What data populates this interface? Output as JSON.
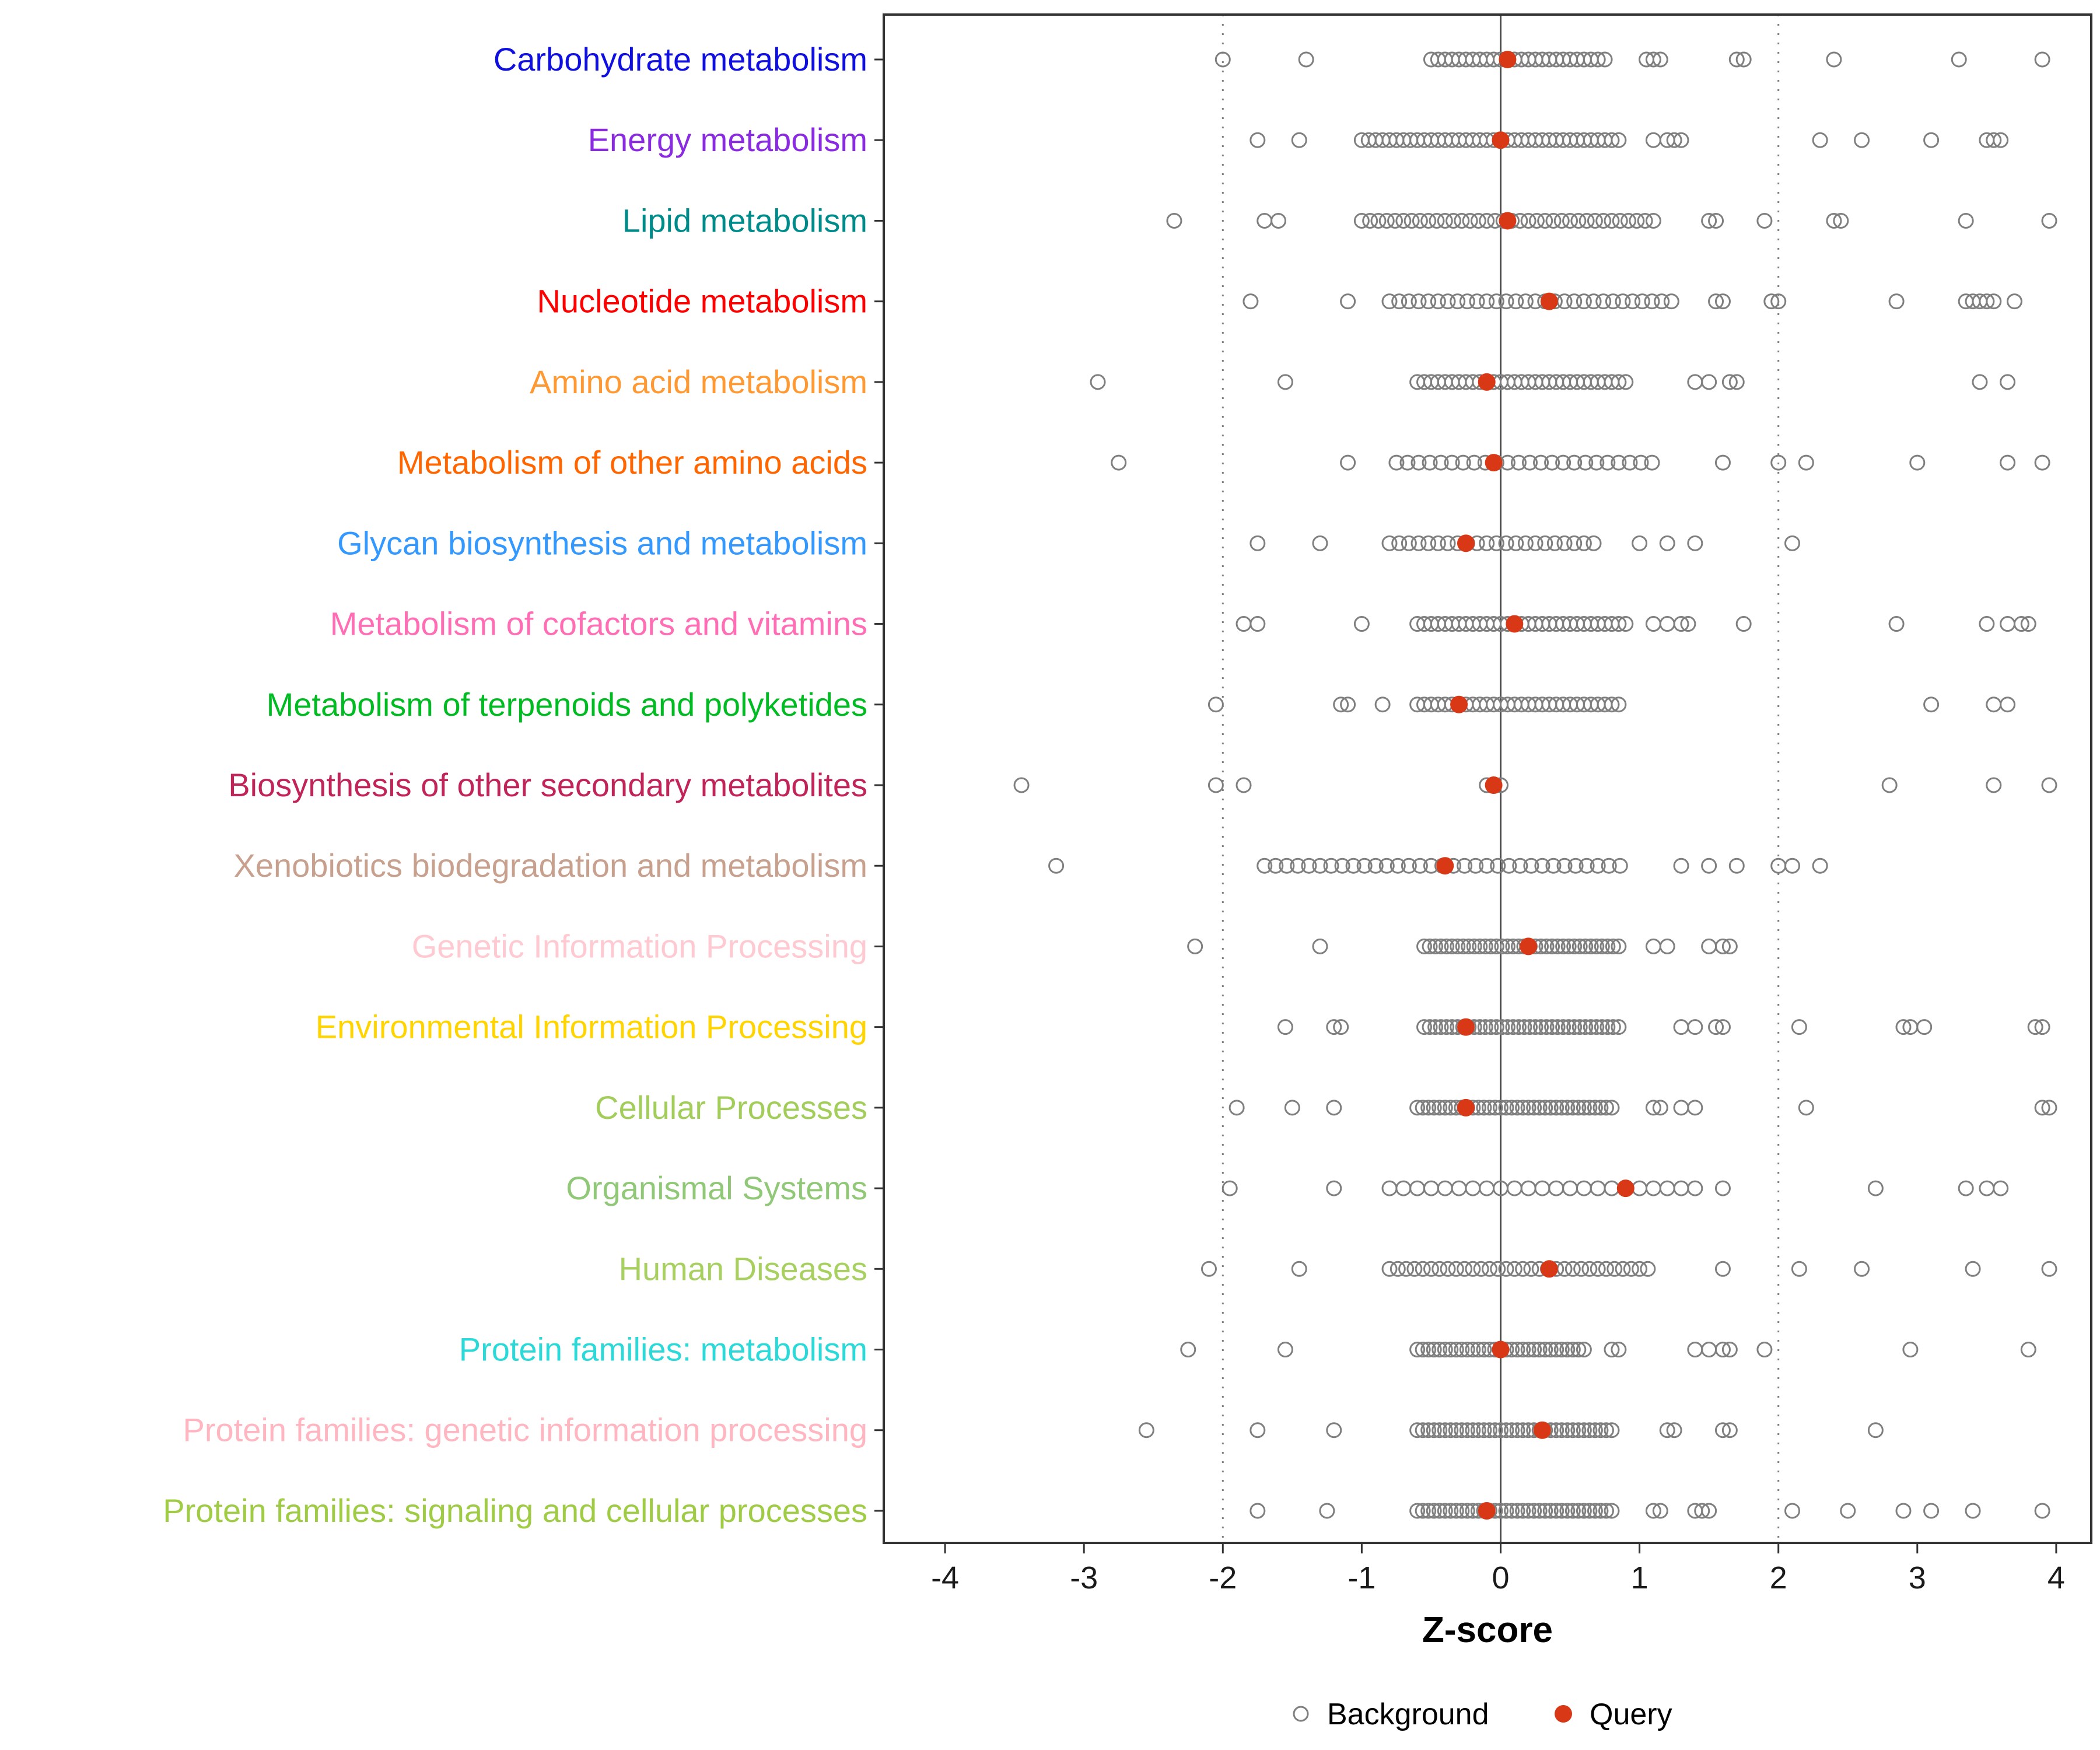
{
  "chart_data": {
    "type": "scatter",
    "title": "",
    "xlabel": "Z-score",
    "ylabel": "",
    "xlim": [
      -4.45,
      4.25
    ],
    "x_ticks": [
      -4,
      -3,
      -2,
      -1,
      0,
      1,
      2,
      3,
      4
    ],
    "grid": false,
    "legend_position": "bottom",
    "legend_background": "Background",
    "legend_query": "Query",
    "colors": {
      "query": "#d93817",
      "background_stroke": "#7f7f7f",
      "refline_solid": "#4d4d4d",
      "refline_dotted": "#7f7f7f",
      "panel_border": "#333333"
    },
    "reference_lines": {
      "solid": [
        0
      ],
      "dotted": [
        -2,
        2
      ]
    },
    "rows": [
      {
        "label": "Carbohydrate metabolism",
        "color": "#0f0fe0",
        "query": 0.05,
        "background": [
          -2,
          -1.4,
          -0.5,
          -0.45,
          -0.4,
          -0.35,
          -0.3,
          -0.25,
          -0.2,
          -0.15,
          -0.1,
          -0.05,
          0,
          0.05,
          0.1,
          0.15,
          0.2,
          0.25,
          0.3,
          0.35,
          0.4,
          0.45,
          0.5,
          0.55,
          0.6,
          0.65,
          0.7,
          0.75,
          1.05,
          1.1,
          1.15,
          1.7,
          1.75,
          2.4,
          3.3,
          3.9
        ]
      },
      {
        "label": "Energy metabolism",
        "color": "#8a2be2",
        "query": 0.0,
        "background": [
          -1.75,
          -1.45,
          -1,
          -0.95,
          -0.9,
          -0.85,
          -0.8,
          -0.75,
          -0.7,
          -0.65,
          -0.6,
          -0.55,
          -0.5,
          -0.45,
          -0.4,
          -0.35,
          -0.3,
          -0.25,
          -0.2,
          -0.15,
          -0.1,
          -0.05,
          0,
          0.05,
          0.1,
          0.15,
          0.2,
          0.25,
          0.3,
          0.35,
          0.4,
          0.45,
          0.5,
          0.55,
          0.6,
          0.65,
          0.7,
          0.75,
          0.8,
          0.85,
          1.1,
          1.2,
          1.25,
          1.3,
          2.3,
          2.6,
          3.1,
          3.5,
          3.55,
          3.6
        ]
      },
      {
        "label": "Lipid metabolism",
        "color": "#008b8b",
        "query": 0.05,
        "background": [
          -2.35,
          -1.7,
          -1.6,
          -1,
          -0.94,
          -0.88,
          -0.82,
          -0.76,
          -0.7,
          -0.64,
          -0.58,
          -0.52,
          -0.46,
          -0.4,
          -0.34,
          -0.28,
          -0.22,
          -0.16,
          -0.1,
          -0.04,
          0.02,
          0.08,
          0.14,
          0.2,
          0.26,
          0.32,
          0.38,
          0.44,
          0.5,
          0.56,
          0.62,
          0.68,
          0.74,
          0.8,
          0.86,
          0.92,
          0.98,
          1.04,
          1.1,
          1.5,
          1.55,
          1.9,
          2.4,
          2.45,
          3.35,
          3.95
        ]
      },
      {
        "label": "Nucleotide metabolism",
        "color": "#ff0000",
        "query": 0.35,
        "background": [
          -1.8,
          -1.1,
          -0.8,
          -0.73,
          -0.66,
          -0.59,
          -0.52,
          -0.45,
          -0.38,
          -0.31,
          -0.24,
          -0.17,
          -0.1,
          -0.03,
          0.04,
          0.11,
          0.18,
          0.25,
          0.32,
          0.39,
          0.46,
          0.53,
          0.6,
          0.67,
          0.74,
          0.81,
          0.88,
          0.95,
          1.02,
          1.09,
          1.16,
          1.23,
          1.55,
          1.6,
          1.95,
          2,
          2.85,
          3.35,
          3.4,
          3.45,
          3.5,
          3.55,
          3.7
        ]
      },
      {
        "label": "Amino acid metabolism",
        "color": "#ff9933",
        "query": -0.1,
        "background": [
          -2.9,
          -1.55,
          -0.6,
          -0.55,
          -0.5,
          -0.45,
          -0.4,
          -0.35,
          -0.3,
          -0.25,
          -0.2,
          -0.15,
          -0.1,
          -0.05,
          0,
          0.05,
          0.1,
          0.15,
          0.2,
          0.25,
          0.3,
          0.35,
          0.4,
          0.45,
          0.5,
          0.55,
          0.6,
          0.65,
          0.7,
          0.75,
          0.8,
          0.85,
          0.9,
          1.4,
          1.5,
          1.65,
          1.7,
          3.45,
          3.65
        ]
      },
      {
        "label": "Metabolism of other amino acids",
        "color": "#ff6600",
        "query": -0.05,
        "background": [
          -2.75,
          -1.1,
          -0.75,
          -0.67,
          -0.59,
          -0.51,
          -0.43,
          -0.35,
          -0.27,
          -0.19,
          -0.11,
          -0.03,
          0.05,
          0.13,
          0.21,
          0.29,
          0.37,
          0.45,
          0.53,
          0.61,
          0.69,
          0.77,
          0.85,
          0.93,
          1.01,
          1.09,
          1.6,
          2,
          2.2,
          3,
          3.65,
          3.9
        ]
      },
      {
        "label": "Glycan biosynthesis and metabolism",
        "color": "#3399ff",
        "query": -0.25,
        "background": [
          -1.75,
          -1.3,
          -0.8,
          -0.73,
          -0.66,
          -0.59,
          -0.52,
          -0.45,
          -0.38,
          -0.31,
          -0.24,
          -0.17,
          -0.1,
          -0.03,
          0.04,
          0.11,
          0.18,
          0.25,
          0.32,
          0.39,
          0.46,
          0.53,
          0.6,
          0.67,
          1,
          1.2,
          1.4,
          2.1
        ]
      },
      {
        "label": "Metabolism of cofactors and vitamins",
        "color": "#ff6eb4",
        "query": 0.1,
        "background": [
          -1.85,
          -1.75,
          -1,
          -0.6,
          -0.55,
          -0.5,
          -0.45,
          -0.4,
          -0.35,
          -0.3,
          -0.25,
          -0.2,
          -0.15,
          -0.1,
          -0.05,
          0,
          0.05,
          0.1,
          0.15,
          0.2,
          0.25,
          0.3,
          0.35,
          0.4,
          0.45,
          0.5,
          0.55,
          0.6,
          0.65,
          0.7,
          0.75,
          0.8,
          0.85,
          0.9,
          1.1,
          1.2,
          1.3,
          1.35,
          1.75,
          2.85,
          3.5,
          3.65,
          3.75,
          3.8
        ]
      },
      {
        "label": "Metabolism of terpenoids and polyketides",
        "color": "#00bb22",
        "query": -0.3,
        "background": [
          -2.05,
          -1.15,
          -1.1,
          -0.85,
          -0.6,
          -0.55,
          -0.5,
          -0.45,
          -0.4,
          -0.35,
          -0.3,
          -0.25,
          -0.2,
          -0.15,
          -0.1,
          -0.05,
          0,
          0.05,
          0.1,
          0.15,
          0.2,
          0.25,
          0.3,
          0.35,
          0.4,
          0.45,
          0.5,
          0.55,
          0.6,
          0.65,
          0.7,
          0.75,
          0.8,
          0.85,
          3.1,
          3.55,
          3.65
        ]
      },
      {
        "label": "Biosynthesis of other secondary metabolites",
        "color": "#c02458",
        "query": -0.05,
        "background": [
          -3.45,
          -2.05,
          -1.85,
          -0.1,
          0,
          2.8,
          3.55,
          3.95
        ]
      },
      {
        "label": "Xenobiotics biodegradation and metabolism",
        "color": "#c8a08e",
        "query": -0.4,
        "background": [
          -3.2,
          -1.7,
          -1.62,
          -1.54,
          -1.46,
          -1.38,
          -1.3,
          -1.22,
          -1.14,
          -1.06,
          -0.98,
          -0.9,
          -0.82,
          -0.74,
          -0.66,
          -0.58,
          -0.5,
          -0.42,
          -0.34,
          -0.26,
          -0.18,
          -0.1,
          -0.02,
          0.06,
          0.14,
          0.22,
          0.3,
          0.38,
          0.46,
          0.54,
          0.62,
          0.7,
          0.78,
          0.86,
          1.3,
          1.5,
          1.7,
          2,
          2.1,
          2.3
        ]
      },
      {
        "label": "Genetic Information Processing",
        "color": "#ffc9d2",
        "query": 0.2,
        "background": [
          -2.2,
          -1.3,
          -0.55,
          -0.51,
          -0.47,
          -0.43,
          -0.39,
          -0.35,
          -0.31,
          -0.27,
          -0.23,
          -0.19,
          -0.15,
          -0.11,
          -0.07,
          -0.03,
          0.01,
          0.05,
          0.09,
          0.13,
          0.17,
          0.21,
          0.25,
          0.29,
          0.33,
          0.37,
          0.41,
          0.45,
          0.49,
          0.53,
          0.57,
          0.61,
          0.65,
          0.69,
          0.73,
          0.77,
          0.81,
          0.85,
          1.1,
          1.2,
          1.5,
          1.6,
          1.65
        ]
      },
      {
        "label": "Environmental Information Processing",
        "color": "#ffd400",
        "query": -0.25,
        "background": [
          -1.55,
          -1.2,
          -1.15,
          -0.55,
          -0.51,
          -0.47,
          -0.43,
          -0.39,
          -0.35,
          -0.31,
          -0.27,
          -0.23,
          -0.19,
          -0.15,
          -0.11,
          -0.07,
          -0.03,
          0.01,
          0.05,
          0.09,
          0.13,
          0.17,
          0.21,
          0.25,
          0.29,
          0.33,
          0.37,
          0.41,
          0.45,
          0.49,
          0.53,
          0.57,
          0.61,
          0.65,
          0.69,
          0.73,
          0.77,
          0.81,
          0.85,
          1.3,
          1.4,
          1.55,
          1.6,
          2.15,
          2.9,
          2.95,
          3.05,
          3.85,
          3.9
        ]
      },
      {
        "label": "Cellular Processes",
        "color": "#a2cd5a",
        "query": -0.25,
        "background": [
          -1.9,
          -1.5,
          -1.2,
          -0.6,
          -0.56,
          -0.52,
          -0.48,
          -0.44,
          -0.4,
          -0.36,
          -0.32,
          -0.28,
          -0.24,
          -0.2,
          -0.16,
          -0.12,
          -0.08,
          -0.04,
          0,
          0.04,
          0.08,
          0.12,
          0.16,
          0.2,
          0.24,
          0.28,
          0.32,
          0.36,
          0.4,
          0.44,
          0.48,
          0.52,
          0.56,
          0.6,
          0.64,
          0.68,
          0.72,
          0.76,
          0.8,
          1.1,
          1.15,
          1.3,
          1.4,
          2.2,
          3.9,
          3.95
        ]
      },
      {
        "label": "Organismal Systems",
        "color": "#90c878",
        "query": 0.9,
        "background": [
          -1.95,
          -1.2,
          -0.8,
          -0.7,
          -0.6,
          -0.5,
          -0.4,
          -0.3,
          -0.2,
          -0.1,
          0,
          0.1,
          0.2,
          0.3,
          0.4,
          0.5,
          0.6,
          0.7,
          0.8,
          1,
          1.1,
          1.2,
          1.3,
          1.4,
          1.6,
          2.7,
          3.35,
          3.5,
          3.6
        ]
      },
      {
        "label": "Human Diseases",
        "color": "#a8d060",
        "query": 0.35,
        "background": [
          -2.1,
          -1.45,
          -0.8,
          -0.74,
          -0.68,
          -0.62,
          -0.56,
          -0.5,
          -0.44,
          -0.38,
          -0.32,
          -0.26,
          -0.2,
          -0.14,
          -0.08,
          -0.02,
          0.04,
          0.1,
          0.16,
          0.22,
          0.28,
          0.34,
          0.4,
          0.46,
          0.52,
          0.58,
          0.64,
          0.7,
          0.76,
          0.82,
          0.88,
          0.94,
          1,
          1.06,
          1.6,
          2.15,
          2.6,
          3.4,
          3.95
        ]
      },
      {
        "label": "Protein families: metabolism",
        "color": "#2bd9d9",
        "query": 0.0,
        "background": [
          -2.25,
          -1.55,
          -0.6,
          -0.56,
          -0.52,
          -0.48,
          -0.44,
          -0.4,
          -0.36,
          -0.32,
          -0.28,
          -0.24,
          -0.2,
          -0.16,
          -0.12,
          -0.08,
          -0.04,
          0,
          0.04,
          0.08,
          0.12,
          0.16,
          0.2,
          0.24,
          0.28,
          0.32,
          0.36,
          0.4,
          0.44,
          0.48,
          0.52,
          0.56,
          0.6,
          0.8,
          0.85,
          1.4,
          1.5,
          1.6,
          1.65,
          1.9,
          2.95,
          3.8
        ]
      },
      {
        "label": "Protein families: genetic information processing",
        "color": "#ffb6c1",
        "query": 0.3,
        "background": [
          -2.55,
          -1.75,
          -1.2,
          -0.6,
          -0.56,
          -0.52,
          -0.48,
          -0.44,
          -0.4,
          -0.36,
          -0.32,
          -0.28,
          -0.24,
          -0.2,
          -0.16,
          -0.12,
          -0.08,
          -0.04,
          0,
          0.04,
          0.08,
          0.12,
          0.16,
          0.2,
          0.24,
          0.28,
          0.32,
          0.36,
          0.4,
          0.44,
          0.48,
          0.52,
          0.56,
          0.6,
          0.64,
          0.68,
          0.72,
          0.76,
          0.8,
          1.2,
          1.25,
          1.6,
          1.65,
          2.7
        ]
      },
      {
        "label": "Protein families: signaling and cellular processes",
        "color": "#a0cb45",
        "query": -0.1,
        "background": [
          -1.75,
          -1.25,
          -0.6,
          -0.56,
          -0.52,
          -0.48,
          -0.44,
          -0.4,
          -0.36,
          -0.32,
          -0.28,
          -0.24,
          -0.2,
          -0.16,
          -0.12,
          -0.08,
          -0.04,
          0,
          0.04,
          0.08,
          0.12,
          0.16,
          0.2,
          0.24,
          0.28,
          0.32,
          0.36,
          0.4,
          0.44,
          0.48,
          0.52,
          0.56,
          0.6,
          0.64,
          0.68,
          0.72,
          0.76,
          0.8,
          1.1,
          1.15,
          1.4,
          1.45,
          1.5,
          2.1,
          2.5,
          2.9,
          3.1,
          3.4,
          3.9
        ]
      }
    ]
  }
}
